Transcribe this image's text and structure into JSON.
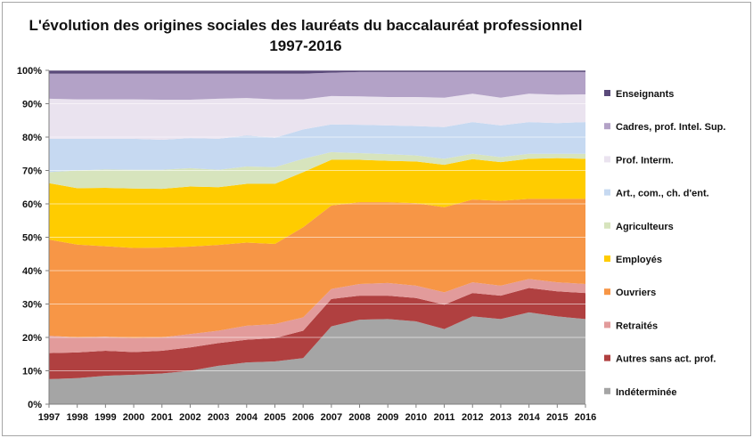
{
  "chart_data": {
    "type": "area",
    "stacked": true,
    "normalized": true,
    "title": [
      "L'évolution des origines sociales des lauréats du baccalauréat professionnel",
      "1997-2016"
    ],
    "xlabel": "",
    "ylabel": "",
    "ylim": [
      0,
      100
    ],
    "yticks": [
      "0%",
      "10%",
      "20%",
      "30%",
      "40%",
      "50%",
      "60%",
      "70%",
      "80%",
      "90%",
      "100%"
    ],
    "categories": [
      "1997",
      "1998",
      "1999",
      "2000",
      "2001",
      "2002",
      "2003",
      "2004",
      "2005",
      "2006",
      "2007",
      "2008",
      "2009",
      "2010",
      "2011",
      "2012",
      "2013",
      "2014",
      "2015",
      "2016"
    ],
    "legend_position": "right",
    "series": [
      {
        "name": "Indéterminée",
        "color": "#a5a5a5",
        "values": [
          7.5,
          7.8,
          8.5,
          8.8,
          9.2,
          10.0,
          11.5,
          12.5,
          12.8,
          13.8,
          23.3,
          25.3,
          25.5,
          24.8,
          22.5,
          26.3,
          25.5,
          27.5,
          26.3,
          25.5
        ]
      },
      {
        "name": "Autres  sans act. prof.",
        "color": "#b04040",
        "values": [
          7.8,
          7.7,
          7.5,
          6.8,
          6.8,
          7.0,
          6.8,
          6.8,
          7.0,
          8.2,
          8.2,
          7.2,
          7.0,
          7.0,
          7.3,
          7.0,
          7.0,
          7.3,
          7.5,
          7.8
        ]
      },
      {
        "name": "Retraités",
        "color": "#e29b9b",
        "values": [
          5.2,
          4.5,
          4.2,
          4.2,
          4.0,
          4.0,
          3.7,
          4.2,
          4.2,
          4.0,
          3.0,
          3.5,
          3.8,
          3.7,
          3.7,
          3.2,
          3.0,
          2.7,
          2.7,
          2.7
        ]
      },
      {
        "name": "Ouvriers",
        "color": "#f79646",
        "values": [
          28.8,
          27.8,
          27.1,
          27.0,
          26.9,
          26.2,
          25.7,
          24.9,
          24.0,
          27.0,
          25.0,
          24.5,
          24.2,
          24.7,
          25.5,
          24.8,
          25.4,
          24.0,
          25.0,
          25.5
        ]
      },
      {
        "name": "Employés",
        "color": "#ffcc00",
        "values": [
          16.9,
          16.9,
          17.5,
          17.8,
          17.6,
          18.0,
          17.3,
          17.6,
          18.0,
          16.5,
          13.7,
          12.7,
          12.4,
          12.5,
          12.7,
          12.1,
          11.6,
          12.0,
          12.2,
          12.0
        ]
      },
      {
        "name": "Agriculteurs",
        "color": "#d7e4bd",
        "values": [
          3.3,
          5.3,
          5.5,
          5.6,
          5.7,
          5.5,
          5.2,
          5.2,
          5.0,
          4.0,
          2.3,
          2.0,
          2.0,
          1.8,
          1.8,
          1.6,
          1.5,
          1.5,
          1.3,
          1.5
        ]
      },
      {
        "name": "Art., com., ch. d'ent.",
        "color": "#c6d9f1",
        "values": [
          10.0,
          9.5,
          9.2,
          9.3,
          9.0,
          9.0,
          9.3,
          9.3,
          8.8,
          8.8,
          8.3,
          8.5,
          8.6,
          8.8,
          9.5,
          9.5,
          9.5,
          9.5,
          9.2,
          9.5
        ]
      },
      {
        "name": "Prof. Interm.",
        "color": "#eae3ef",
        "values": [
          12.0,
          11.8,
          11.8,
          11.8,
          12.0,
          11.5,
          12.0,
          11.2,
          11.5,
          9.0,
          8.5,
          8.5,
          8.5,
          8.7,
          8.8,
          8.5,
          8.3,
          8.5,
          8.5,
          8.3
        ]
      },
      {
        "name": "Cadres, prof. Intel. Sup.",
        "color": "#b3a2c7",
        "values": [
          7.5,
          7.7,
          7.7,
          7.7,
          7.8,
          7.8,
          7.5,
          7.3,
          7.7,
          7.7,
          7.0,
          7.3,
          7.5,
          7.5,
          7.7,
          6.5,
          7.7,
          6.5,
          6.8,
          6.7
        ]
      },
      {
        "name": "Enseignants",
        "color": "#5a4a7a",
        "values": [
          1.0,
          1.0,
          1.0,
          1.0,
          1.0,
          1.0,
          1.0,
          1.0,
          1.0,
          1.0,
          0.7,
          0.5,
          0.5,
          0.5,
          0.5,
          0.5,
          0.5,
          0.5,
          0.5,
          0.5
        ]
      }
    ]
  }
}
